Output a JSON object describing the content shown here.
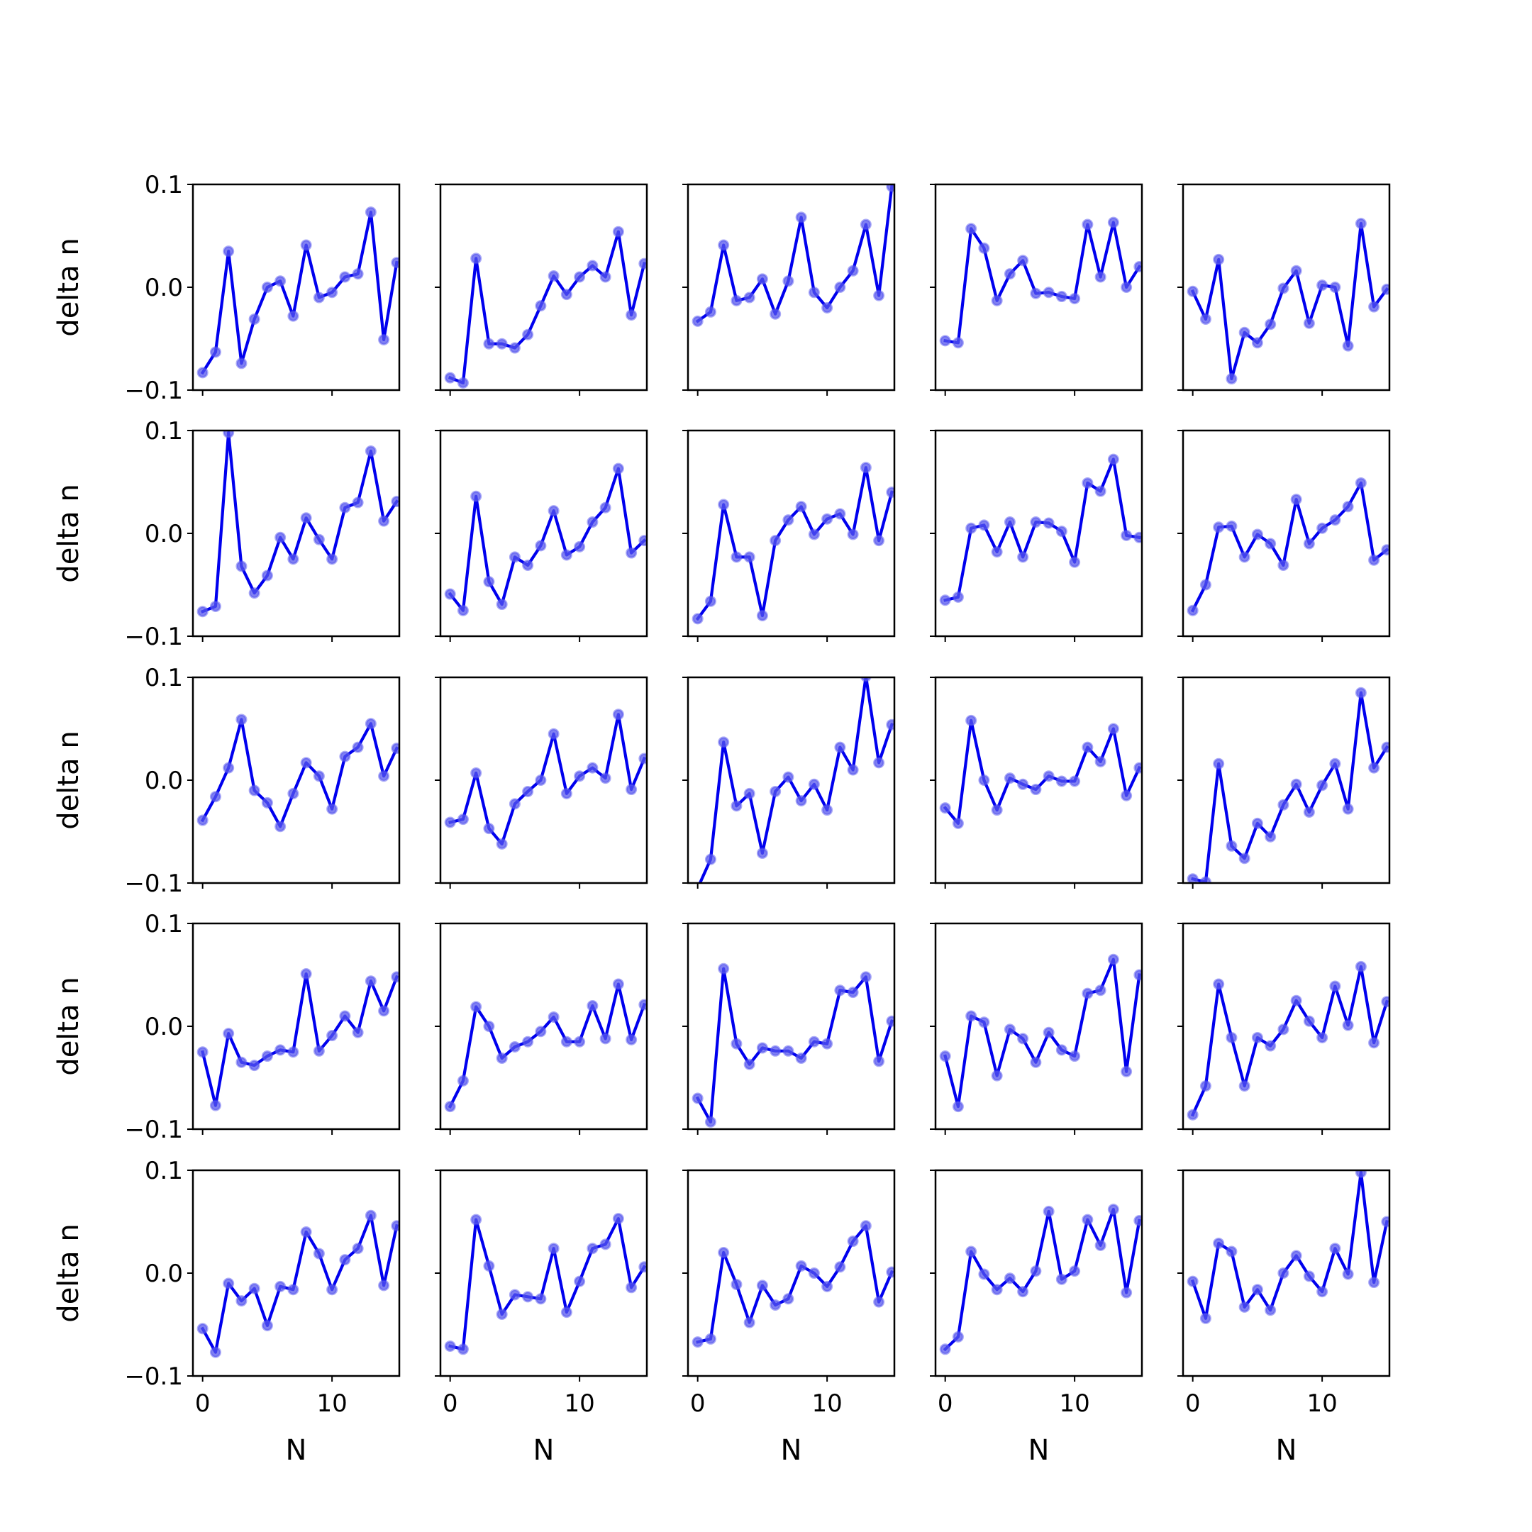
{
  "colors": {
    "line": "#0000ee",
    "marker": "#5555ee",
    "axes": "#000000",
    "background": "#ffffff"
  },
  "chart_data": {
    "type": "line",
    "layout": "5x5 grid of subplots, shared axes",
    "xlabel": "N",
    "ylabel": "delta n",
    "x": [
      0,
      1,
      2,
      3,
      4,
      5,
      6,
      7,
      8,
      9,
      10,
      11,
      12,
      13,
      14,
      15
    ],
    "xlim": [
      -0.75,
      15.2
    ],
    "ylim": [
      -0.1,
      0.1
    ],
    "x_ticks": [
      0,
      10
    ],
    "x_tick_labels": [
      "0",
      "10"
    ],
    "y_ticks": [
      -0.1,
      0.0,
      0.1
    ],
    "y_tick_labels": [
      "−0.1",
      "0.0",
      "0.1"
    ],
    "grid": false,
    "legend": "none",
    "panels": [
      {
        "row": 0,
        "col": 0,
        "values": [
          -0.083,
          -0.063,
          0.035,
          -0.074,
          -0.031,
          0.0,
          0.006,
          -0.028,
          0.041,
          -0.01,
          -0.005,
          0.01,
          0.013,
          0.073,
          -0.051,
          0.024
        ]
      },
      {
        "row": 0,
        "col": 1,
        "values": [
          -0.088,
          -0.093,
          0.028,
          -0.055,
          -0.055,
          -0.059,
          -0.046,
          -0.018,
          0.011,
          -0.007,
          0.01,
          0.021,
          0.01,
          0.054,
          -0.027,
          0.023
        ]
      },
      {
        "row": 0,
        "col": 2,
        "values": [
          -0.033,
          -0.024,
          0.041,
          -0.013,
          -0.01,
          0.008,
          -0.026,
          0.006,
          0.068,
          -0.005,
          -0.02,
          0.0,
          0.016,
          0.061,
          -0.008,
          0.098
        ]
      },
      {
        "row": 0,
        "col": 3,
        "values": [
          -0.052,
          -0.054,
          0.057,
          0.038,
          -0.013,
          0.013,
          0.026,
          -0.006,
          -0.005,
          -0.009,
          -0.011,
          0.061,
          0.01,
          0.063,
          0.0,
          0.02
        ]
      },
      {
        "row": 0,
        "col": 4,
        "values": [
          -0.004,
          -0.031,
          0.027,
          -0.089,
          -0.044,
          -0.054,
          -0.036,
          -0.001,
          0.016,
          -0.035,
          0.002,
          0.0,
          -0.057,
          0.062,
          -0.019,
          -0.002
        ]
      },
      {
        "row": 1,
        "col": 0,
        "values": [
          -0.076,
          -0.071,
          0.098,
          -0.032,
          -0.058,
          -0.041,
          -0.004,
          -0.025,
          0.015,
          -0.006,
          -0.025,
          0.025,
          0.03,
          0.08,
          0.012,
          0.031
        ]
      },
      {
        "row": 1,
        "col": 1,
        "values": [
          -0.059,
          -0.075,
          0.036,
          -0.047,
          -0.069,
          -0.023,
          -0.031,
          -0.012,
          0.022,
          -0.021,
          -0.013,
          0.011,
          0.025,
          0.063,
          -0.019,
          -0.007
        ]
      },
      {
        "row": 1,
        "col": 2,
        "values": [
          -0.083,
          -0.066,
          0.028,
          -0.023,
          -0.023,
          -0.08,
          -0.007,
          0.013,
          0.026,
          -0.001,
          0.014,
          0.019,
          -0.001,
          0.064,
          -0.007,
          0.04
        ]
      },
      {
        "row": 1,
        "col": 3,
        "values": [
          -0.065,
          -0.062,
          0.005,
          0.008,
          -0.018,
          0.011,
          -0.023,
          0.011,
          0.01,
          0.002,
          -0.028,
          0.049,
          0.041,
          0.072,
          -0.002,
          -0.004
        ]
      },
      {
        "row": 1,
        "col": 4,
        "values": [
          -0.075,
          -0.05,
          0.006,
          0.007,
          -0.023,
          -0.001,
          -0.01,
          -0.031,
          0.033,
          -0.01,
          0.005,
          0.013,
          0.026,
          0.049,
          -0.026,
          -0.016
        ]
      },
      {
        "row": 2,
        "col": 0,
        "values": [
          -0.039,
          -0.016,
          0.012,
          0.059,
          -0.01,
          -0.022,
          -0.045,
          -0.013,
          0.017,
          0.004,
          -0.028,
          0.023,
          0.032,
          0.055,
          0.004,
          0.031
        ]
      },
      {
        "row": 2,
        "col": 1,
        "values": [
          -0.041,
          -0.038,
          0.007,
          -0.047,
          -0.062,
          -0.023,
          -0.011,
          0.0,
          0.045,
          -0.013,
          0.004,
          0.012,
          0.002,
          0.064,
          -0.009,
          0.021
        ]
      },
      {
        "row": 2,
        "col": 2,
        "values": [
          -0.105,
          -0.077,
          0.037,
          -0.025,
          -0.013,
          -0.071,
          -0.011,
          0.003,
          -0.02,
          -0.004,
          -0.029,
          0.032,
          0.01,
          0.101,
          0.017,
          0.054
        ]
      },
      {
        "row": 2,
        "col": 3,
        "values": [
          -0.027,
          -0.042,
          0.058,
          0.0,
          -0.029,
          0.002,
          -0.004,
          -0.009,
          0.004,
          -0.001,
          -0.001,
          0.032,
          0.018,
          0.05,
          -0.015,
          0.012
        ]
      },
      {
        "row": 2,
        "col": 4,
        "values": [
          -0.096,
          -0.099,
          0.016,
          -0.064,
          -0.076,
          -0.042,
          -0.055,
          -0.024,
          -0.004,
          -0.031,
          -0.005,
          0.016,
          -0.028,
          0.085,
          0.012,
          0.032
        ]
      },
      {
        "row": 3,
        "col": 0,
        "values": [
          -0.025,
          -0.077,
          -0.007,
          -0.035,
          -0.038,
          -0.029,
          -0.023,
          -0.025,
          0.051,
          -0.024,
          -0.009,
          0.01,
          -0.006,
          0.044,
          0.015,
          0.048
        ]
      },
      {
        "row": 3,
        "col": 1,
        "values": [
          -0.078,
          -0.053,
          0.019,
          0.0,
          -0.031,
          -0.02,
          -0.015,
          -0.005,
          0.009,
          -0.015,
          -0.015,
          0.02,
          -0.012,
          0.041,
          -0.013,
          0.021
        ]
      },
      {
        "row": 3,
        "col": 2,
        "values": [
          -0.07,
          -0.093,
          0.056,
          -0.017,
          -0.037,
          -0.021,
          -0.024,
          -0.024,
          -0.031,
          -0.015,
          -0.017,
          0.035,
          0.033,
          0.048,
          -0.034,
          0.005
        ]
      },
      {
        "row": 3,
        "col": 3,
        "values": [
          -0.029,
          -0.078,
          0.01,
          0.004,
          -0.048,
          -0.003,
          -0.012,
          -0.035,
          -0.006,
          -0.023,
          -0.029,
          0.032,
          0.035,
          0.065,
          -0.044,
          0.05
        ]
      },
      {
        "row": 3,
        "col": 4,
        "values": [
          -0.086,
          -0.058,
          0.041,
          -0.011,
          -0.058,
          -0.011,
          -0.019,
          -0.003,
          0.025,
          0.005,
          -0.011,
          0.039,
          0.001,
          0.058,
          -0.016,
          0.024
        ]
      },
      {
        "row": 4,
        "col": 0,
        "values": [
          -0.054,
          -0.077,
          -0.01,
          -0.027,
          -0.015,
          -0.051,
          -0.013,
          -0.016,
          0.04,
          0.019,
          -0.016,
          0.013,
          0.024,
          0.056,
          -0.012,
          0.046
        ]
      },
      {
        "row": 4,
        "col": 1,
        "values": [
          -0.071,
          -0.074,
          0.052,
          0.007,
          -0.04,
          -0.021,
          -0.023,
          -0.025,
          0.024,
          -0.038,
          -0.008,
          0.024,
          0.028,
          0.053,
          -0.014,
          0.006
        ]
      },
      {
        "row": 4,
        "col": 2,
        "values": [
          -0.067,
          -0.064,
          0.02,
          -0.011,
          -0.048,
          -0.012,
          -0.031,
          -0.025,
          0.007,
          0.0,
          -0.013,
          0.006,
          0.031,
          0.046,
          -0.028,
          0.001
        ]
      },
      {
        "row": 4,
        "col": 3,
        "values": [
          -0.074,
          -0.062,
          0.021,
          -0.001,
          -0.016,
          -0.005,
          -0.018,
          0.002,
          0.06,
          -0.006,
          0.002,
          0.052,
          0.027,
          0.062,
          -0.019,
          0.051
        ]
      },
      {
        "row": 4,
        "col": 4,
        "values": [
          -0.008,
          -0.044,
          0.029,
          0.021,
          -0.033,
          -0.016,
          -0.036,
          0.0,
          0.017,
          -0.003,
          -0.018,
          0.024,
          -0.001,
          0.098,
          -0.009,
          0.05
        ]
      }
    ]
  }
}
